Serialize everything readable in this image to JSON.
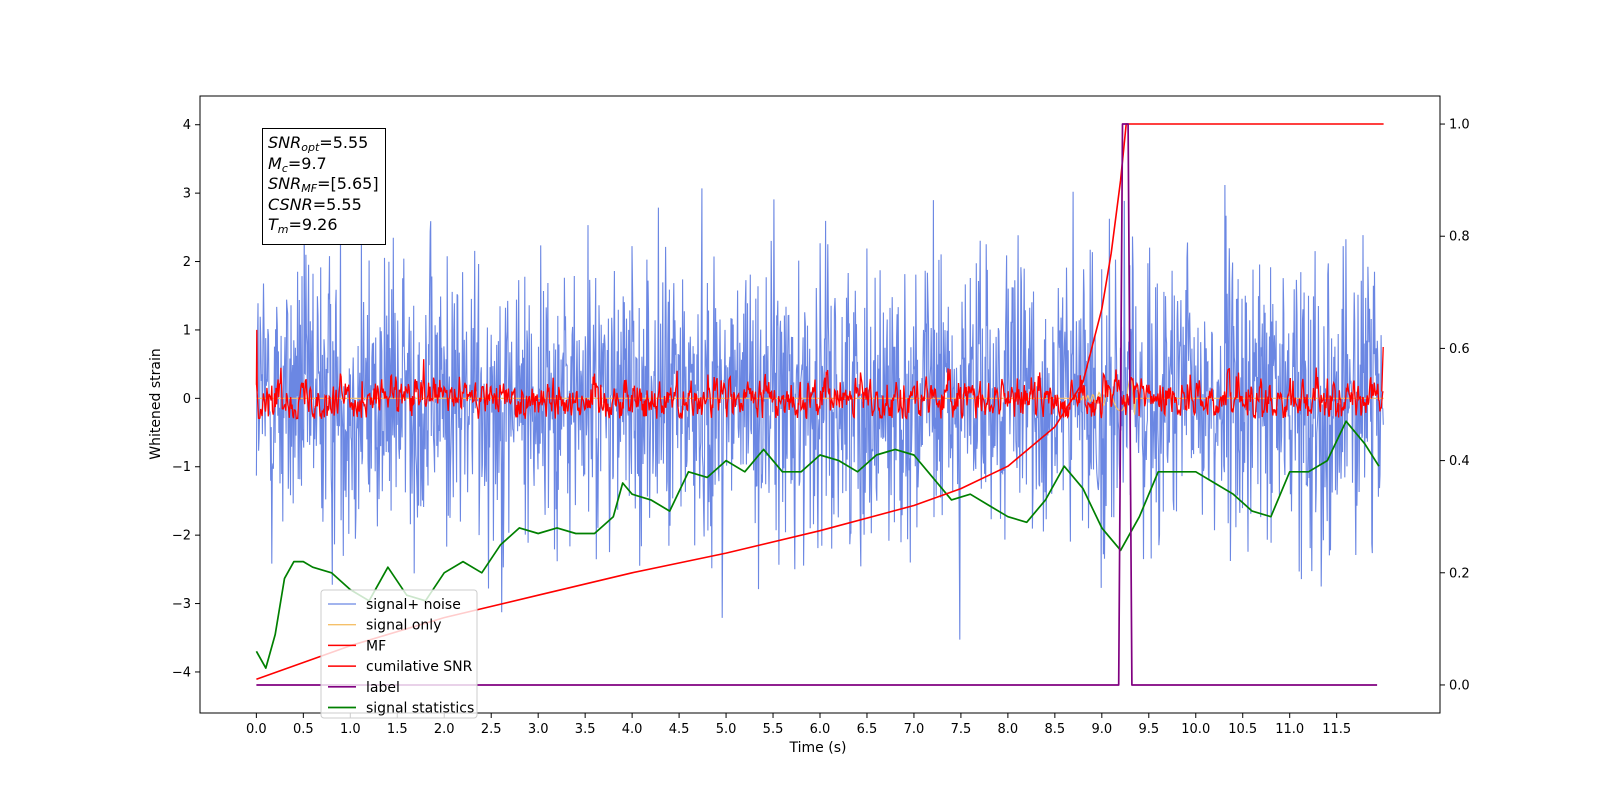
{
  "chart_data": {
    "type": "line",
    "xlabel": "Time (s)",
    "ylabel": "Whitened strain",
    "xlim": [
      -0.6,
      12.6
    ],
    "ylim": [
      -4.6,
      4.42
    ],
    "ylim_right": [
      -0.05,
      1.05
    ],
    "x_ticks": [
      "0.0",
      "0.5",
      "1.0",
      "1.5",
      "2.0",
      "2.5",
      "3.0",
      "3.5",
      "4.0",
      "4.5",
      "5.0",
      "5.5",
      "6.0",
      "6.5",
      "7.0",
      "7.5",
      "8.0",
      "8.5",
      "9.0",
      "9.5",
      "10.0",
      "10.5",
      "11.0",
      "11.5"
    ],
    "y_ticks_left": [
      "4",
      "3",
      "2",
      "1",
      "0",
      "−1",
      "−2",
      "−3",
      "−4"
    ],
    "y_ticks_right": [
      "1.0",
      "0.8",
      "0.6",
      "0.4",
      "0.2",
      "0.0"
    ],
    "grid": false,
    "legend_position": "lower-left",
    "annotation": {
      "snr_opt": {
        "name": "SNR",
        "sub": "opt",
        "value": "=5.55"
      },
      "mc": {
        "name": "M",
        "sub": "c",
        "value": "=9.7"
      },
      "snr_mf": {
        "name": "SNR",
        "sub": "MF",
        "value": "=[5.65]"
      },
      "csnr": {
        "name": "CSNR",
        "value": "=5.55"
      },
      "tm": {
        "name": "T",
        "sub": "m",
        "value": "=9.26"
      }
    },
    "series": [
      {
        "name": "signal+ noise",
        "color": "#6b87e3",
        "axis": "left",
        "approx_range": [
          -4.15,
          4.0
        ]
      },
      {
        "name": "signal only",
        "color": "#f5c06a",
        "axis": "left",
        "burst_x": [
          8.6,
          9.35
        ]
      },
      {
        "name": "MF",
        "color": "#ff0000",
        "axis": "left",
        "approx_range": [
          -0.3,
          0.6
        ]
      },
      {
        "name": "cumilative SNR",
        "color": "#ff0000",
        "axis": "right",
        "x": [
          0.0,
          1.0,
          2.0,
          3.0,
          4.0,
          5.0,
          6.0,
          7.0,
          7.5,
          8.0,
          8.5,
          8.8,
          9.0,
          9.1,
          9.2,
          9.26,
          12.0
        ],
        "values": [
          0.01,
          0.07,
          0.12,
          0.16,
          0.2,
          0.235,
          0.275,
          0.32,
          0.35,
          0.39,
          0.46,
          0.54,
          0.67,
          0.77,
          0.9,
          1.0,
          1.0
        ]
      },
      {
        "name": "label",
        "color": "#800080",
        "axis": "right",
        "x": [
          0.0,
          9.18,
          9.22,
          9.28,
          9.32,
          11.93
        ],
        "values": [
          0.0,
          0.0,
          1.0,
          1.0,
          0.0,
          0.0
        ]
      },
      {
        "name": "signal statistics",
        "color": "#008000",
        "axis": "right",
        "x": [
          0.0,
          0.1,
          0.2,
          0.3,
          0.4,
          0.5,
          0.6,
          0.8,
          1.0,
          1.2,
          1.4,
          1.6,
          1.8,
          2.0,
          2.2,
          2.4,
          2.6,
          2.8,
          3.0,
          3.2,
          3.4,
          3.6,
          3.8,
          3.9,
          4.0,
          4.2,
          4.4,
          4.6,
          4.8,
          5.0,
          5.2,
          5.4,
          5.6,
          5.8,
          6.0,
          6.2,
          6.4,
          6.6,
          6.8,
          7.0,
          7.2,
          7.4,
          7.6,
          7.8,
          8.0,
          8.2,
          8.4,
          8.6,
          8.8,
          9.0,
          9.2,
          9.4,
          9.6,
          9.8,
          10.0,
          10.2,
          10.4,
          10.6,
          10.8,
          11.0,
          11.2,
          11.4,
          11.6,
          11.8,
          11.95
        ],
        "values": [
          0.06,
          0.03,
          0.09,
          0.19,
          0.22,
          0.22,
          0.21,
          0.2,
          0.17,
          0.15,
          0.21,
          0.16,
          0.15,
          0.2,
          0.22,
          0.2,
          0.25,
          0.28,
          0.27,
          0.28,
          0.27,
          0.27,
          0.3,
          0.36,
          0.34,
          0.33,
          0.31,
          0.38,
          0.37,
          0.4,
          0.38,
          0.42,
          0.38,
          0.38,
          0.41,
          0.4,
          0.38,
          0.41,
          0.42,
          0.41,
          0.37,
          0.33,
          0.34,
          0.32,
          0.3,
          0.29,
          0.33,
          0.39,
          0.35,
          0.28,
          0.24,
          0.3,
          0.38,
          0.38,
          0.38,
          0.36,
          0.34,
          0.31,
          0.3,
          0.38,
          0.38,
          0.4,
          0.47,
          0.43,
          0.39
        ]
      }
    ]
  }
}
